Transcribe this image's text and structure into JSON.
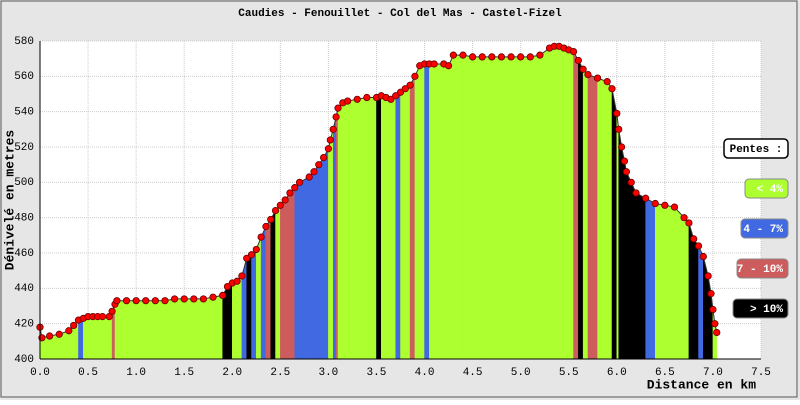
{
  "chart_data": {
    "type": "elevation",
    "title": "Caudies - Fenouillet - Col del Mas - Castel-Fizel",
    "y_label": "Dénivelé en metres",
    "x_label": "Distance en km",
    "xlim": [
      0,
      7.5
    ],
    "ylim": [
      400,
      580
    ],
    "xticks": [
      {
        "value": 0,
        "label": "0.0"
      },
      {
        "value": 0.5,
        "label": "0.5"
      },
      {
        "value": 1,
        "label": "1.0"
      },
      {
        "value": 1.5,
        "label": "1.5"
      },
      {
        "value": 2,
        "label": "2.0"
      },
      {
        "value": 2.5,
        "label": "2.5"
      },
      {
        "value": 3,
        "label": "3.0"
      },
      {
        "value": 3.5,
        "label": "3.5"
      },
      {
        "value": 4,
        "label": "4.0"
      },
      {
        "value": 4.5,
        "label": "4.5"
      },
      {
        "value": 5,
        "label": "5.0"
      },
      {
        "value": 5.5,
        "label": "5.5"
      },
      {
        "value": 6,
        "label": "6.0"
      },
      {
        "value": 6.5,
        "label": "6.5"
      },
      {
        "value": 7,
        "label": "7.0"
      },
      {
        "value": 7.5,
        "label": "7.5"
      }
    ],
    "yticks": [
      400,
      420,
      440,
      460,
      480,
      500,
      520,
      540,
      560,
      580
    ],
    "grid": true,
    "x": [
      0,
      0.02,
      0.1,
      0.2,
      0.3,
      0.35,
      0.4,
      0.45,
      0.5,
      0.55,
      0.6,
      0.65,
      0.72,
      0.75,
      0.78,
      0.8,
      0.9,
      1.0,
      1.1,
      1.2,
      1.3,
      1.4,
      1.5,
      1.6,
      1.7,
      1.8,
      1.9,
      1.95,
      2.0,
      2.05,
      2.1,
      2.15,
      2.2,
      2.25,
      2.3,
      2.35,
      2.4,
      2.45,
      2.5,
      2.55,
      2.6,
      2.65,
      2.7,
      2.8,
      2.85,
      2.9,
      2.95,
      3.0,
      3.02,
      3.05,
      3.08,
      3.1,
      3.15,
      3.2,
      3.3,
      3.4,
      3.5,
      3.55,
      3.6,
      3.65,
      3.7,
      3.75,
      3.8,
      3.85,
      3.9,
      3.95,
      4.0,
      4.05,
      4.1,
      4.2,
      4.25,
      4.3,
      4.4,
      4.5,
      4.6,
      4.7,
      4.8,
      4.9,
      5.0,
      5.1,
      5.2,
      5.3,
      5.35,
      5.4,
      5.45,
      5.5,
      5.55,
      5.6,
      5.65,
      5.7,
      5.8,
      5.9,
      5.95,
      6.0,
      6.02,
      6.05,
      6.08,
      6.1,
      6.15,
      6.2,
      6.3,
      6.4,
      6.5,
      6.6,
      6.7,
      6.75,
      6.8,
      6.85,
      6.9,
      6.95,
      6.98,
      7.0,
      7.02,
      7.04
    ],
    "values": [
      418,
      412,
      413,
      414,
      416,
      419,
      422,
      423,
      424,
      424,
      424,
      424,
      424,
      427,
      431,
      433,
      433,
      433,
      433,
      433,
      433,
      434,
      434,
      434,
      434,
      435,
      436,
      441,
      443,
      444,
      447,
      457,
      459,
      462,
      469,
      475,
      479,
      484,
      487,
      490,
      494,
      497,
      500,
      503,
      506,
      510,
      514,
      519,
      524,
      530,
      537,
      542,
      545,
      546,
      547,
      548,
      548,
      549,
      548,
      547,
      549,
      551,
      553,
      555,
      560,
      566,
      567,
      567,
      567,
      567,
      566,
      572,
      572,
      571,
      571,
      571,
      571,
      571,
      571,
      571,
      572,
      576,
      577,
      577,
      576,
      575,
      574,
      569,
      564,
      561,
      559,
      557,
      553,
      539,
      530,
      520,
      512,
      506,
      500,
      494,
      491,
      488,
      487,
      486,
      480,
      477,
      468,
      464,
      458,
      447,
      437,
      428,
      420,
      415
    ],
    "band_colors": [
      "#adff2f",
      "#adff2f",
      "#adff2f",
      "#adff2f",
      "#adff2f",
      "#adff2f",
      "#4169e1",
      "#adff2f",
      "#adff2f",
      "#adff2f",
      "#adff2f",
      "#adff2f",
      "#adff2f",
      "#cd5c5c",
      "#adff2f",
      "#adff2f",
      "#adff2f",
      "#adff2f",
      "#adff2f",
      "#adff2f",
      "#adff2f",
      "#adff2f",
      "#adff2f",
      "#adff2f",
      "#adff2f",
      "#adff2f",
      "#000000",
      "#000000",
      "#adff2f",
      "#adff2f",
      "#4169e1",
      "#000000",
      "#4169e1",
      "#adff2f",
      "#4169e1",
      "#cd5c5c",
      "#000000",
      "#adff2f",
      "#cd5c5c",
      "#cd5c5c",
      "#cd5c5c",
      "#4169e1",
      "#4169e1",
      "#4169e1",
      "#4169e1",
      "#4169e1",
      "#4169e1",
      "#adff2f",
      "#adff2f",
      "#4169e1",
      "#cd5c5c",
      "#adff2f",
      "#adff2f",
      "#adff2f",
      "#adff2f",
      "#adff2f",
      "#000000",
      "#adff2f",
      "#adff2f",
      "#adff2f",
      "#4169e1",
      "#adff2f",
      "#adff2f",
      "#cd5c5c",
      "#adff2f",
      "#adff2f",
      "#4169e1",
      "#adff2f",
      "#adff2f",
      "#adff2f",
      "#adff2f",
      "#adff2f",
      "#adff2f",
      "#adff2f",
      "#adff2f",
      "#adff2f",
      "#adff2f",
      "#adff2f",
      "#adff2f",
      "#adff2f",
      "#adff2f",
      "#adff2f",
      "#adff2f",
      "#adff2f",
      "#adff2f",
      "#adff2f",
      "#cd5c5c",
      "#000000",
      "#adff2f",
      "#cd5c5c",
      "#adff2f",
      "#adff2f",
      "#000000",
      "#adff2f",
      "#000000",
      "#000000",
      "#000000",
      "#000000",
      "#000000",
      "#000000",
      "#4169e1",
      "#adff2f",
      "#adff2f",
      "#adff2f",
      "#adff2f",
      "#000000",
      "#000000",
      "#4169e1",
      "#000000",
      "#000000",
      "#000000",
      "#adff2f",
      "#adff2f"
    ],
    "marker_color": "#ff0000",
    "legend_title": "Pentes :",
    "legend": [
      {
        "label": "< 4%",
        "color": "#adff2f"
      },
      {
        "label": "4 - 7%",
        "color": "#4169e1"
      },
      {
        "label": "7 - 10%",
        "color": "#cd5c5c"
      },
      {
        "label": "> 10%",
        "color": "#000000"
      }
    ]
  }
}
